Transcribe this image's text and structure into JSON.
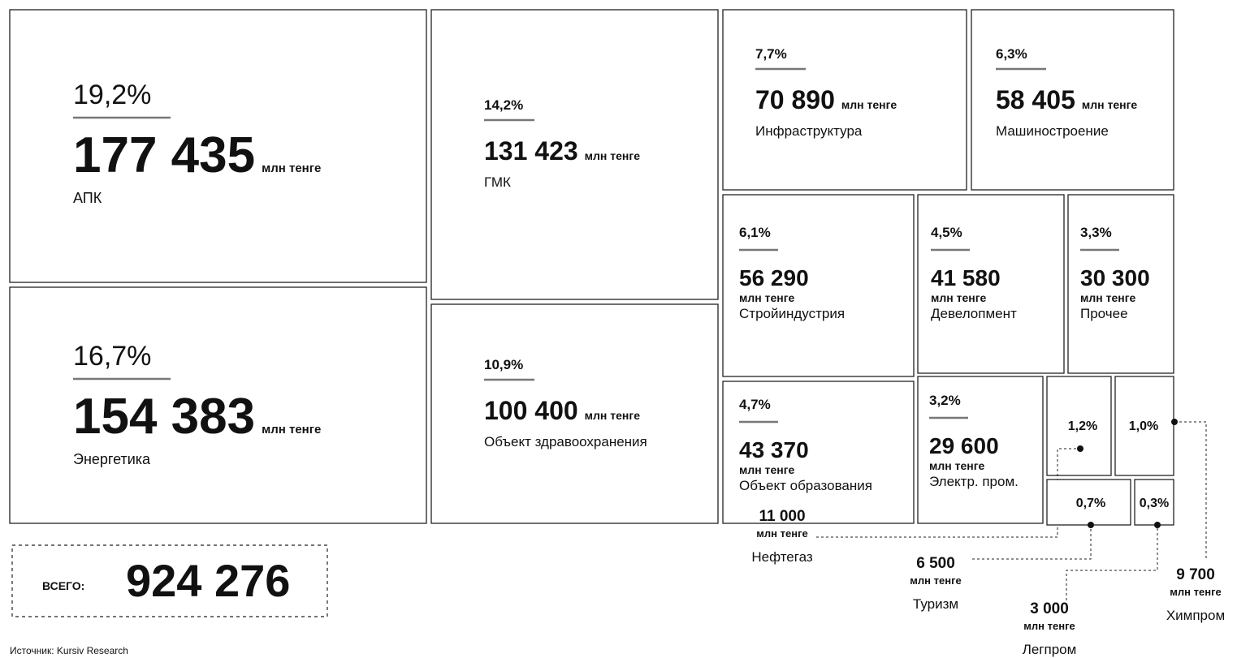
{
  "chart_data": {
    "type": "treemap",
    "unit": "млн тенге",
    "categories": [
      "АПК",
      "Энергетика",
      "ГМК",
      "Объект здравоохранения",
      "Инфраструктура",
      "Машиностроение",
      "Стройиндустрия",
      "Девелопмент",
      "Прочее",
      "Объект образования",
      "Электр. пром.",
      "Нефтегаз",
      "Химпром",
      "Туризм",
      "Легпром"
    ],
    "values": [
      177435,
      154383,
      131423,
      100400,
      70890,
      58405,
      56290,
      41580,
      30300,
      43370,
      29600,
      11000,
      9700,
      6500,
      3000
    ],
    "value_labels": [
      "177 435",
      "154 383",
      "131 423",
      "100 400",
      "70 890",
      "58 405",
      "56 290",
      "41 580",
      "30 300",
      "43 370",
      "29 600",
      "11 000",
      "9 700",
      "6 500",
      "3 000"
    ],
    "shares": [
      19.2,
      16.7,
      14.2,
      10.9,
      7.7,
      6.3,
      6.1,
      4.5,
      3.3,
      4.7,
      3.2,
      1.2,
      1.0,
      0.7,
      0.3
    ],
    "share_labels": [
      "19,2%",
      "16,7%",
      "14,2%",
      "10,9%",
      "7,7%",
      "6,3%",
      "6,1%",
      "4,5%",
      "3,3%",
      "4,7%",
      "3,2%",
      "1,2%",
      "1,0%",
      "0,7%",
      "0,3%"
    ],
    "total_title": "ВСЕГО:",
    "total": 924276,
    "total_label": "924 276",
    "source": "Источник: Kursiv Research"
  }
}
